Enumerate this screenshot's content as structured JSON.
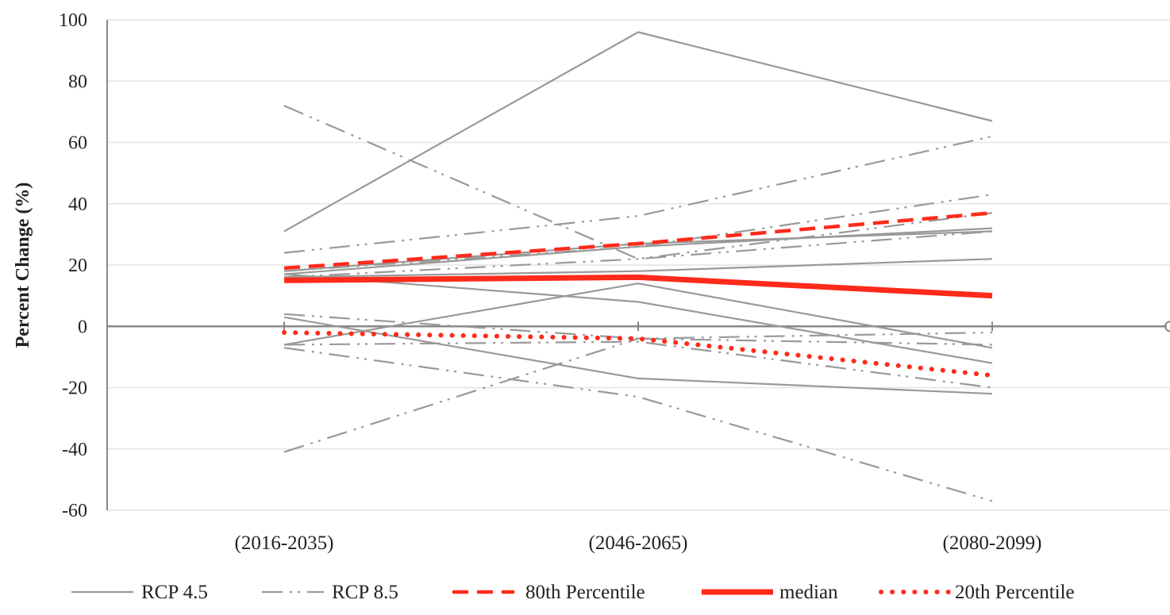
{
  "chart_data": {
    "type": "line",
    "title": "",
    "xlabel": "",
    "ylabel": "Percent Change (%)",
    "ylim": [
      -60,
      100
    ],
    "yticks": [
      100,
      80,
      60,
      40,
      20,
      0,
      -20,
      -40,
      -60
    ],
    "categories": [
      "(2016-2035)",
      "(2046-2065)",
      "(2080-2099)"
    ],
    "grid": true,
    "legend_position": "bottom",
    "colors": {
      "gray": "#999999",
      "red": "#ff2a1a",
      "grid": "#e4e4e4",
      "axis": "#888888"
    },
    "legend": [
      {
        "label": "RCP 4.5",
        "style": "rcp45"
      },
      {
        "label": "RCP 8.5",
        "style": "rcp85"
      },
      {
        "label": "80th Percentile",
        "style": "p80"
      },
      {
        "label": "median",
        "style": "median"
      },
      {
        "label": "20th Percentile",
        "style": "p20"
      }
    ],
    "series": [
      {
        "group": "RCP 4.5",
        "style": "rcp45",
        "values": [
          31,
          96,
          67
        ]
      },
      {
        "group": "RCP 4.5",
        "style": "rcp45",
        "values": [
          17,
          26,
          32
        ]
      },
      {
        "group": "RCP 4.5",
        "style": "rcp45",
        "values": [
          16,
          18,
          22
        ]
      },
      {
        "group": "RCP 4.5",
        "style": "rcp45",
        "values": [
          17,
          8,
          -12
        ]
      },
      {
        "group": "RCP 4.5",
        "style": "rcp45",
        "values": [
          -6,
          14,
          -7
        ]
      },
      {
        "group": "RCP 4.5",
        "style": "rcp45",
        "values": [
          3,
          -17,
          -22
        ]
      },
      {
        "group": "RCP 4.5",
        "style": "rcp45",
        "values": [
          18,
          27,
          31
        ]
      },
      {
        "group": "RCP 8.5",
        "style": "rcp85",
        "values": [
          72,
          22,
          37
        ]
      },
      {
        "group": "RCP 8.5",
        "style": "rcp85",
        "values": [
          24,
          36,
          62
        ]
      },
      {
        "group": "RCP 8.5",
        "style": "rcp85",
        "values": [
          -41,
          -4,
          -2
        ]
      },
      {
        "group": "RCP 8.5",
        "style": "rcp85",
        "values": [
          -7,
          -23,
          -57
        ]
      },
      {
        "group": "RCP 8.5",
        "style": "rcp85",
        "values": [
          4,
          -4,
          -6
        ]
      },
      {
        "group": "RCP 8.5",
        "style": "rcp85",
        "values": [
          -6,
          -5,
          -20
        ]
      },
      {
        "group": "RCP 8.5",
        "style": "rcp85",
        "values": [
          18,
          26,
          43
        ]
      },
      {
        "group": "RCP 8.5",
        "style": "rcp85",
        "values": [
          16,
          22,
          31
        ]
      },
      {
        "group": "80th Percentile",
        "style": "p80",
        "values": [
          19,
          27,
          37
        ]
      },
      {
        "group": "median",
        "style": "median",
        "values": [
          15,
          16,
          10
        ]
      },
      {
        "group": "20th Percentile",
        "style": "p20",
        "values": [
          -2,
          -4,
          -16
        ]
      }
    ]
  }
}
